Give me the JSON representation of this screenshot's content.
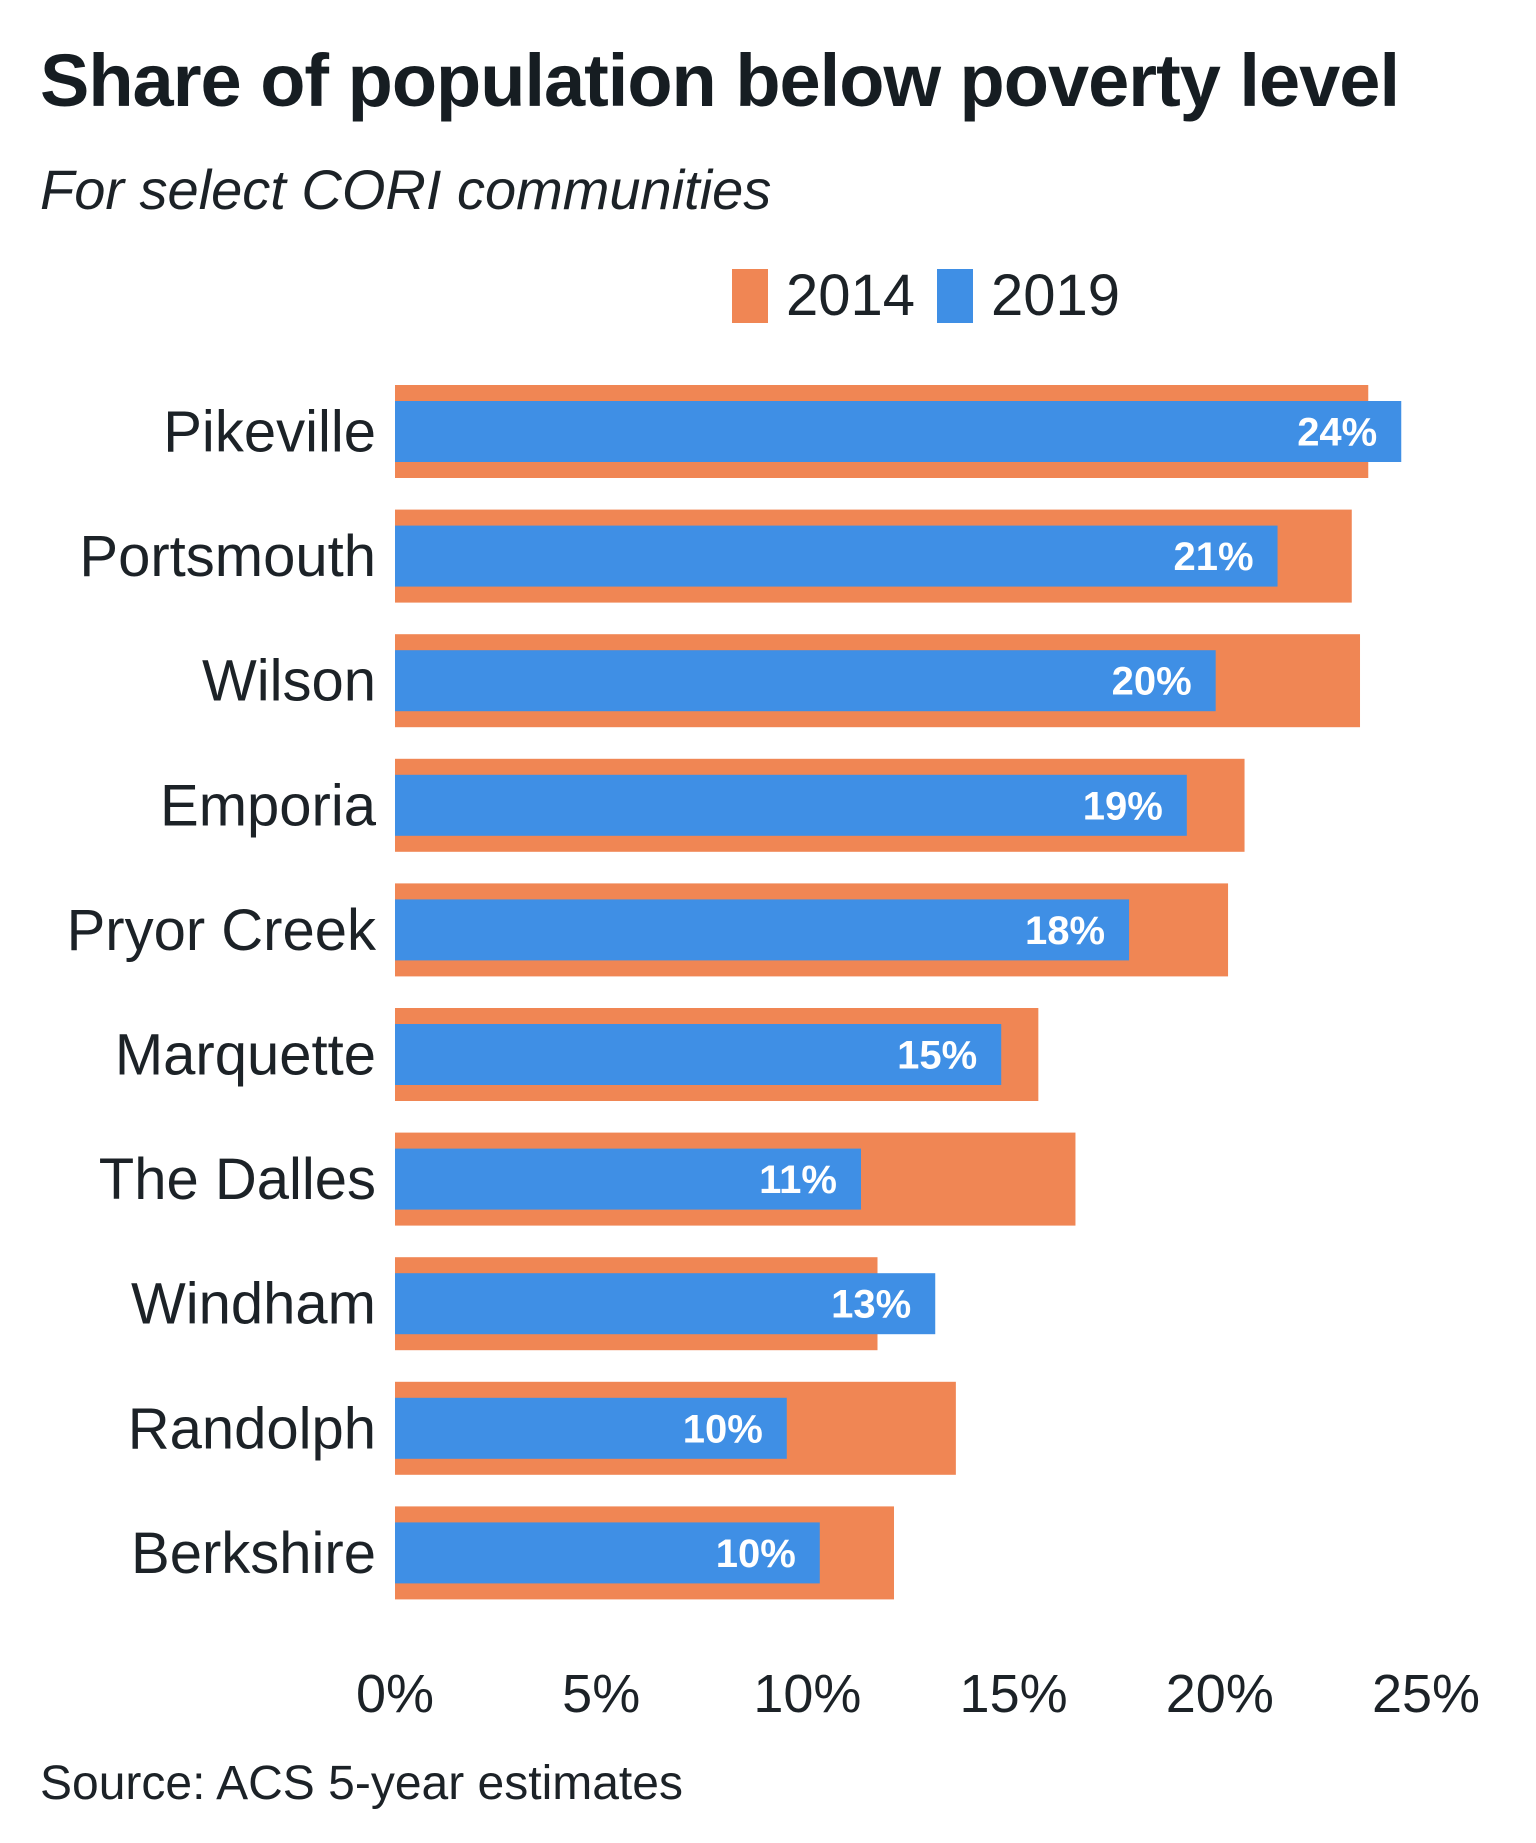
{
  "chart_data": {
    "type": "bar",
    "orientation": "horizontal",
    "title": "Share of population below poverty level",
    "subtitle": "For select CORI communities",
    "source": "Source: ACS 5-year estimates",
    "categories": [
      "Pikeville",
      "Portsmouth",
      "Wilson",
      "Emporia",
      "Pryor Creek",
      "Marquette",
      "The Dalles",
      "Windham",
      "Randolph",
      "Berkshire"
    ],
    "series": [
      {
        "name": "2014",
        "color": "#f08654",
        "values": [
          23.6,
          23.2,
          23.4,
          20.6,
          20.2,
          15.6,
          16.5,
          11.7,
          13.6,
          12.1
        ]
      },
      {
        "name": "2019",
        "color": "#3f8fe5",
        "values": [
          24.4,
          21.4,
          19.9,
          19.2,
          17.8,
          14.7,
          11.3,
          13.1,
          9.5,
          10.3
        ],
        "labels": [
          "24%",
          "21%",
          "20%",
          "19%",
          "18%",
          "15%",
          "11%",
          "13%",
          "10%",
          "10%"
        ]
      }
    ],
    "xlim": [
      0,
      25
    ],
    "xticks": [
      0,
      5,
      10,
      15,
      20,
      25
    ],
    "xtick_labels": [
      "0%",
      "5%",
      "10%",
      "15%",
      "20%",
      "25%"
    ],
    "grid": false,
    "legend_position": "top"
  }
}
